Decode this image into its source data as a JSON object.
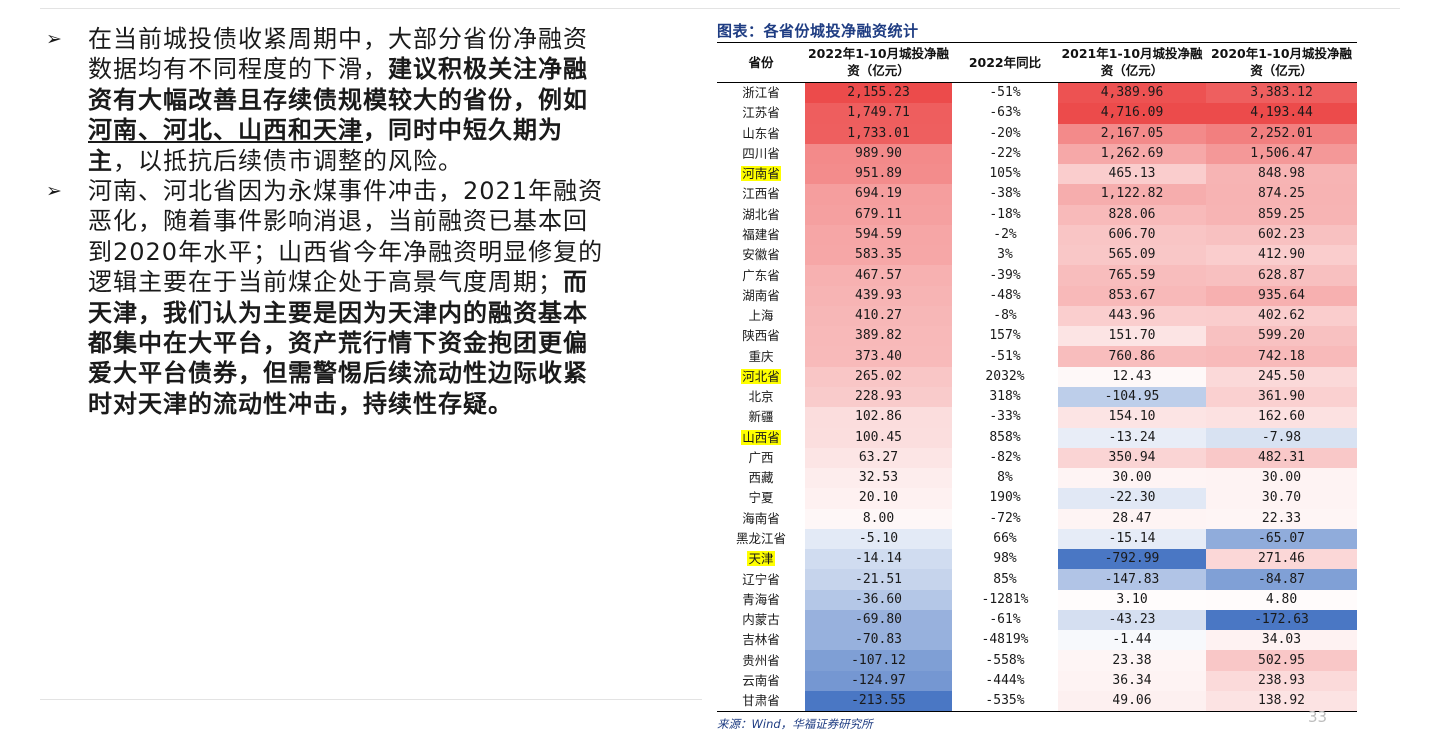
{
  "left": {
    "bullets": [
      {
        "marker": "➢",
        "segments": [
          {
            "text": "在当前城投债收紧周期中，大部分省份净融资数据均有不同程度的下滑，",
            "style": ""
          },
          {
            "text": "建议积极关注净融资有大幅改善且存续债规模较大的省份，例如",
            "style": "b"
          },
          {
            "text": "河南、河北、山西和天津",
            "style": "b u"
          },
          {
            "text": "，同时中短久期为主",
            "style": "b"
          },
          {
            "text": "，以抵抗后续债市调整的风险。",
            "style": ""
          }
        ]
      },
      {
        "marker": "➢",
        "segments": [
          {
            "text": "河南、河北省因为永煤事件冲击，2021年融资恶化，随着事件影响消退，当前融资已基本回到2020年水平；山西省今年净融资明显修复的逻辑主要在于当前煤企处于高景气度周期；",
            "style": ""
          },
          {
            "text": "而天津，我们认为主要是因为天津内的融资基本都集中在大平台，资产荒行情下资金抱团更偏爱大平台债券，但需警惕后续流动性边际收紧时对天津的流动性冲击，持续性存疑。",
            "style": "b"
          }
        ]
      }
    ]
  },
  "table": {
    "title": "图表：各省份城投净融资统计",
    "headers": [
      "省份",
      "2022年1-10月城投净融资（亿元）",
      "2022年同比",
      "2021年1-10月城投净融资（亿元）",
      "2020年1-10月城投净融资（亿元）"
    ],
    "rows": [
      [
        "浙江省",
        "2,155.23",
        "-51%",
        "4,389.96",
        "3,383.12"
      ],
      [
        "江苏省",
        "1,749.71",
        "-63%",
        "4,716.09",
        "4,193.44"
      ],
      [
        "山东省",
        "1,733.01",
        "-20%",
        "2,167.05",
        "2,252.01"
      ],
      [
        "四川省",
        "989.90",
        "-22%",
        "1,262.69",
        "1,506.47"
      ],
      [
        "河南省",
        "951.89",
        "105%",
        "465.13",
        "848.98"
      ],
      [
        "江西省",
        "694.19",
        "-38%",
        "1,122.82",
        "874.25"
      ],
      [
        "湖北省",
        "679.11",
        "-18%",
        "828.06",
        "859.25"
      ],
      [
        "福建省",
        "594.59",
        "-2%",
        "606.70",
        "602.23"
      ],
      [
        "安徽省",
        "583.35",
        "3%",
        "565.09",
        "412.90"
      ],
      [
        "广东省",
        "467.57",
        "-39%",
        "765.59",
        "628.87"
      ],
      [
        "湖南省",
        "439.93",
        "-48%",
        "853.67",
        "935.64"
      ],
      [
        "上海",
        "410.27",
        "-8%",
        "443.96",
        "402.62"
      ],
      [
        "陕西省",
        "389.82",
        "157%",
        "151.70",
        "599.20"
      ],
      [
        "重庆",
        "373.40",
        "-51%",
        "760.86",
        "742.18"
      ],
      [
        "河北省",
        "265.02",
        "2032%",
        "12.43",
        "245.50"
      ],
      [
        "北京",
        "228.93",
        "318%",
        "-104.95",
        "361.90"
      ],
      [
        "新疆",
        "102.86",
        "-33%",
        "154.10",
        "162.60"
      ],
      [
        "山西省",
        "100.45",
        "858%",
        "-13.24",
        "-7.98"
      ],
      [
        "广西",
        "63.27",
        "-82%",
        "350.94",
        "482.31"
      ],
      [
        "西藏",
        "32.53",
        "8%",
        "30.00",
        "30.00"
      ],
      [
        "宁夏",
        "20.10",
        "190%",
        "-22.30",
        "30.70"
      ],
      [
        "海南省",
        "8.00",
        "-72%",
        "28.47",
        "22.33"
      ],
      [
        "黑龙江省",
        "-5.10",
        "66%",
        "-15.14",
        "-65.07"
      ],
      [
        "天津",
        "-14.14",
        "98%",
        "-792.99",
        "271.46"
      ],
      [
        "辽宁省",
        "-21.51",
        "85%",
        "-147.83",
        "-84.87"
      ],
      [
        "青海省",
        "-36.60",
        "-1281%",
        "3.10",
        "4.80"
      ],
      [
        "内蒙古",
        "-69.80",
        "-61%",
        "-43.23",
        "-172.63"
      ],
      [
        "吉林省",
        "-70.83",
        "-4819%",
        "-1.44",
        "34.03"
      ],
      [
        "贵州省",
        "-107.12",
        "-558%",
        "23.38",
        "502.95"
      ],
      [
        "云南省",
        "-124.97",
        "-444%",
        "36.34",
        "238.93"
      ],
      [
        "甘肃省",
        "-213.55",
        "-535%",
        "49.06",
        "138.92"
      ]
    ],
    "highlighted_provinces": [
      "河南省",
      "河北省",
      "山西省",
      "天津"
    ],
    "colors": {
      "title": "#1e3c82",
      "highlight": "#ffff00",
      "heat_positive": "#ec4b4b",
      "heat_negative": "#4a77c4",
      "neutral": "#ffffff"
    },
    "source": "来源：Wind，华福证券研究所"
  },
  "page_number": "33"
}
